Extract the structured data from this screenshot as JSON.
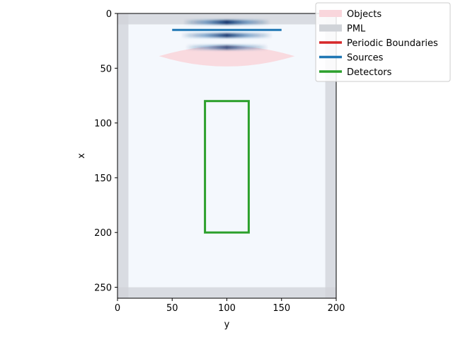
{
  "chart_data": {
    "type": "heatmap",
    "xlabel": "y",
    "ylabel": "x",
    "xlim": [
      0,
      200
    ],
    "ylim": [
      260,
      0
    ],
    "x_ticks": [
      0,
      50,
      100,
      150,
      200
    ],
    "y_ticks": [
      0,
      50,
      100,
      150,
      200,
      250
    ],
    "grid": false,
    "legend_position": "top-right",
    "legend": [
      {
        "label": "Objects",
        "color": "#f9d6dc",
        "style": "patch"
      },
      {
        "label": "PML",
        "color": "#d0d3d8",
        "style": "patch"
      },
      {
        "label": "Periodic Boundaries",
        "color": "#d62728",
        "style": "line"
      },
      {
        "label": "Sources",
        "color": "#1f77b4",
        "style": "line"
      },
      {
        "label": "Detectors",
        "color": "#2ca02c",
        "style": "line"
      }
    ],
    "pml": {
      "thickness": 10,
      "color": "#d0d3d8"
    },
    "source_line": {
      "x": 15,
      "y_start": 50,
      "y_end": 150,
      "color": "#1f77b4"
    },
    "detector_box": {
      "x_start": 80,
      "x_end": 200,
      "y_start": 80,
      "y_end": 120,
      "color": "#2ca02c"
    },
    "object_lens": {
      "x_top": 28,
      "x_bottom": 50,
      "y_left": 38,
      "y_right": 162,
      "color": "#f9d6dc"
    },
    "field_bands": [
      {
        "x": 8,
        "y_start": 60,
        "y_end": 140,
        "intensity": 1.0
      },
      {
        "x": 20,
        "y_start": 58,
        "y_end": 142,
        "intensity": 0.95
      },
      {
        "x": 31,
        "y_start": 62,
        "y_end": 138,
        "intensity": 0.8
      }
    ],
    "background_color": "#f4f8fd"
  }
}
